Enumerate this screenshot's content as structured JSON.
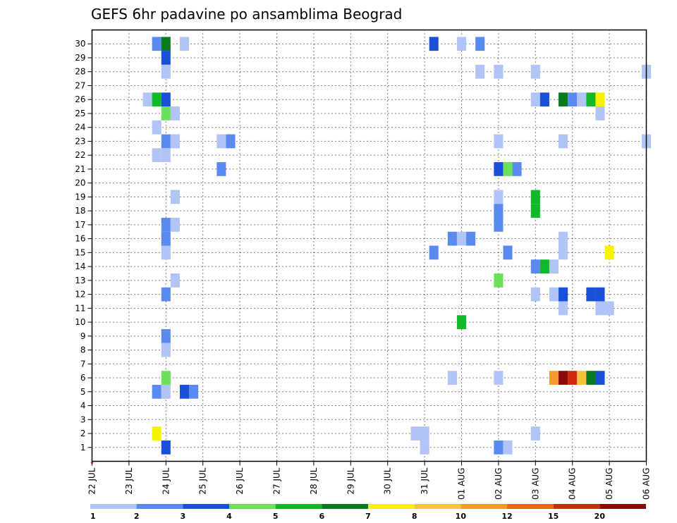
{
  "chart_data": {
    "type": "heatmap",
    "title": "GEFS 6hr padavine po ansamblima Beograd",
    "y_range": [
      0,
      31
    ],
    "y_ticks": [
      "1",
      "2",
      "3",
      "4",
      "5",
      "6",
      "7",
      "8",
      "9",
      "10",
      "11",
      "12",
      "13",
      "14",
      "15",
      "16",
      "17",
      "18",
      "19",
      "20",
      "21",
      "22",
      "23",
      "24",
      "25",
      "26",
      "27",
      "28",
      "29",
      "30"
    ],
    "x_ticks": [
      "22 JUL",
      "23 JUL",
      "24 JUL",
      "25 JUL",
      "26 JUL",
      "27 JUL",
      "28 JUL",
      "29 JUL",
      "30 JUL",
      "31 JUL",
      "01 AUG",
      "02 AUG",
      "03 AUG",
      "04 AUG",
      "05 AUG",
      "06 AUG"
    ],
    "x_time_step": "6hr",
    "grid": true,
    "colorbar": {
      "placement": "bottom",
      "labels": [
        "1",
        "2",
        "3",
        "4",
        "5",
        "6",
        "7",
        "8",
        "10",
        "12",
        "15",
        "20"
      ],
      "colors": [
        "#b0c4f5",
        "#5a8af0",
        "#1a4fd8",
        "#6de05a",
        "#12b82a",
        "#0a7a1e",
        "#f7f300",
        "#f9c23a",
        "#f49a2a",
        "#f06a14",
        "#d4280e",
        "#8a0a0a"
      ]
    },
    "cells": [
      {
        "member": 30,
        "x": "23 JUL 18Z",
        "v": 2
      },
      {
        "member": 30,
        "x": "24 JUL 00Z",
        "v": 6
      },
      {
        "member": 30,
        "x": "24 JUL 12Z",
        "v": 1
      },
      {
        "member": 30,
        "x": "31 JUL 06Z",
        "v": 3
      },
      {
        "member": 30,
        "x": "01 AUG 00Z",
        "v": 1
      },
      {
        "member": 30,
        "x": "01 AUG 12Z",
        "v": 2
      },
      {
        "member": 29,
        "x": "24 JUL 00Z",
        "v": 3
      },
      {
        "member": 28,
        "x": "24 JUL 00Z",
        "v": 1
      },
      {
        "member": 28,
        "x": "01 AUG 12Z",
        "v": 1
      },
      {
        "member": 28,
        "x": "02 AUG 00Z",
        "v": 1
      },
      {
        "member": 28,
        "x": "03 AUG 00Z",
        "v": 1
      },
      {
        "member": 28,
        "x": "06 AUG 00Z",
        "v": 1
      },
      {
        "member": 26,
        "x": "23 JUL 12Z",
        "v": 1
      },
      {
        "member": 26,
        "x": "23 JUL 18Z",
        "v": 5
      },
      {
        "member": 26,
        "x": "24 JUL 00Z",
        "v": 3
      },
      {
        "member": 26,
        "x": "03 AUG 00Z",
        "v": 1
      },
      {
        "member": 26,
        "x": "03 AUG 06Z",
        "v": 3
      },
      {
        "member": 26,
        "x": "03 AUG 18Z",
        "v": 6
      },
      {
        "member": 26,
        "x": "04 AUG 00Z",
        "v": 2
      },
      {
        "member": 26,
        "x": "04 AUG 06Z",
        "v": 1
      },
      {
        "member": 26,
        "x": "04 AUG 12Z",
        "v": 5
      },
      {
        "member": 26,
        "x": "04 AUG 18Z",
        "v": 7
      },
      {
        "member": 25,
        "x": "24 JUL 00Z",
        "v": 4
      },
      {
        "member": 25,
        "x": "24 JUL 06Z",
        "v": 1
      },
      {
        "member": 25,
        "x": "04 AUG 18Z",
        "v": 1
      },
      {
        "member": 24,
        "x": "23 JUL 18Z",
        "v": 1
      },
      {
        "member": 23,
        "x": "24 JUL 00Z",
        "v": 2
      },
      {
        "member": 23,
        "x": "24 JUL 06Z",
        "v": 1
      },
      {
        "member": 23,
        "x": "25 JUL 12Z",
        "v": 1
      },
      {
        "member": 23,
        "x": "25 JUL 18Z",
        "v": 2
      },
      {
        "member": 23,
        "x": "02 AUG 00Z",
        "v": 1
      },
      {
        "member": 23,
        "x": "03 AUG 18Z",
        "v": 1
      },
      {
        "member": 23,
        "x": "06 AUG 00Z",
        "v": 1
      },
      {
        "member": 22,
        "x": "23 JUL 18Z",
        "v": 1
      },
      {
        "member": 22,
        "x": "24 JUL 00Z",
        "v": 1
      },
      {
        "member": 21,
        "x": "25 JUL 12Z",
        "v": 2
      },
      {
        "member": 21,
        "x": "02 AUG 00Z",
        "v": 3
      },
      {
        "member": 21,
        "x": "02 AUG 06Z",
        "v": 4
      },
      {
        "member": 21,
        "x": "02 AUG 12Z",
        "v": 2
      },
      {
        "member": 19,
        "x": "24 JUL 06Z",
        "v": 1
      },
      {
        "member": 19,
        "x": "02 AUG 00Z",
        "v": 1
      },
      {
        "member": 19,
        "x": "03 AUG 00Z",
        "v": 5
      },
      {
        "member": 18,
        "x": "02 AUG 00Z",
        "v": 2
      },
      {
        "member": 18,
        "x": "03 AUG 00Z",
        "v": 5
      },
      {
        "member": 17,
        "x": "24 JUL 00Z",
        "v": 2
      },
      {
        "member": 17,
        "x": "24 JUL 06Z",
        "v": 1
      },
      {
        "member": 17,
        "x": "02 AUG 00Z",
        "v": 2
      },
      {
        "member": 16,
        "x": "24 JUL 00Z",
        "v": 2
      },
      {
        "member": 16,
        "x": "31 JUL 18Z",
        "v": 2
      },
      {
        "member": 16,
        "x": "01 AUG 00Z",
        "v": 1
      },
      {
        "member": 16,
        "x": "01 AUG 06Z",
        "v": 2
      },
      {
        "member": 16,
        "x": "03 AUG 18Z",
        "v": 1
      },
      {
        "member": 15,
        "x": "24 JUL 00Z",
        "v": 1
      },
      {
        "member": 15,
        "x": "31 JUL 06Z",
        "v": 2
      },
      {
        "member": 15,
        "x": "02 AUG 06Z",
        "v": 2
      },
      {
        "member": 15,
        "x": "03 AUG 18Z",
        "v": 1
      },
      {
        "member": 15,
        "x": "05 AUG 00Z",
        "v": 7
      },
      {
        "member": 14,
        "x": "03 AUG 00Z",
        "v": 2
      },
      {
        "member": 14,
        "x": "03 AUG 06Z",
        "v": 5
      },
      {
        "member": 14,
        "x": "03 AUG 12Z",
        "v": 1
      },
      {
        "member": 13,
        "x": "24 JUL 06Z",
        "v": 1
      },
      {
        "member": 13,
        "x": "02 AUG 00Z",
        "v": 4
      },
      {
        "member": 12,
        "x": "24 JUL 00Z",
        "v": 2
      },
      {
        "member": 12,
        "x": "03 AUG 00Z",
        "v": 1
      },
      {
        "member": 12,
        "x": "03 AUG 12Z",
        "v": 1
      },
      {
        "member": 12,
        "x": "03 AUG 18Z",
        "v": 3
      },
      {
        "member": 12,
        "x": "04 AUG 12Z",
        "v": 3
      },
      {
        "member": 12,
        "x": "04 AUG 18Z",
        "v": 3
      },
      {
        "member": 11,
        "x": "03 AUG 18Z",
        "v": 1
      },
      {
        "member": 11,
        "x": "04 AUG 18Z",
        "v": 1
      },
      {
        "member": 11,
        "x": "05 AUG 00Z",
        "v": 1
      },
      {
        "member": 10,
        "x": "01 AUG 00Z",
        "v": 5
      },
      {
        "member": 9,
        "x": "24 JUL 00Z",
        "v": 2
      },
      {
        "member": 8,
        "x": "24 JUL 00Z",
        "v": 1
      },
      {
        "member": 6,
        "x": "24 JUL 00Z",
        "v": 4
      },
      {
        "member": 6,
        "x": "31 JUL 18Z",
        "v": 1
      },
      {
        "member": 6,
        "x": "02 AUG 00Z",
        "v": 1
      },
      {
        "member": 6,
        "x": "03 AUG 12Z",
        "v": 10
      },
      {
        "member": 6,
        "x": "03 AUG 18Z",
        "v": 20
      },
      {
        "member": 6,
        "x": "04 AUG 00Z",
        "v": 15
      },
      {
        "member": 6,
        "x": "04 AUG 06Z",
        "v": 8
      },
      {
        "member": 6,
        "x": "04 AUG 12Z",
        "v": 6
      },
      {
        "member": 6,
        "x": "04 AUG 18Z",
        "v": 3
      },
      {
        "member": 5,
        "x": "23 JUL 18Z",
        "v": 2
      },
      {
        "member": 5,
        "x": "24 JUL 00Z",
        "v": 1
      },
      {
        "member": 5,
        "x": "24 JUL 12Z",
        "v": 3
      },
      {
        "member": 5,
        "x": "24 JUL 18Z",
        "v": 2
      },
      {
        "member": 2,
        "x": "23 JUL 18Z",
        "v": 7
      },
      {
        "member": 2,
        "x": "30 JUL 18Z",
        "v": 1
      },
      {
        "member": 2,
        "x": "31 JUL 00Z",
        "v": 1
      },
      {
        "member": 2,
        "x": "03 AUG 00Z",
        "v": 1
      },
      {
        "member": 1,
        "x": "24 JUL 00Z",
        "v": 3
      },
      {
        "member": 1,
        "x": "31 JUL 00Z",
        "v": 1
      },
      {
        "member": 1,
        "x": "02 AUG 00Z",
        "v": 2
      },
      {
        "member": 1,
        "x": "02 AUG 06Z",
        "v": 1
      }
    ]
  }
}
